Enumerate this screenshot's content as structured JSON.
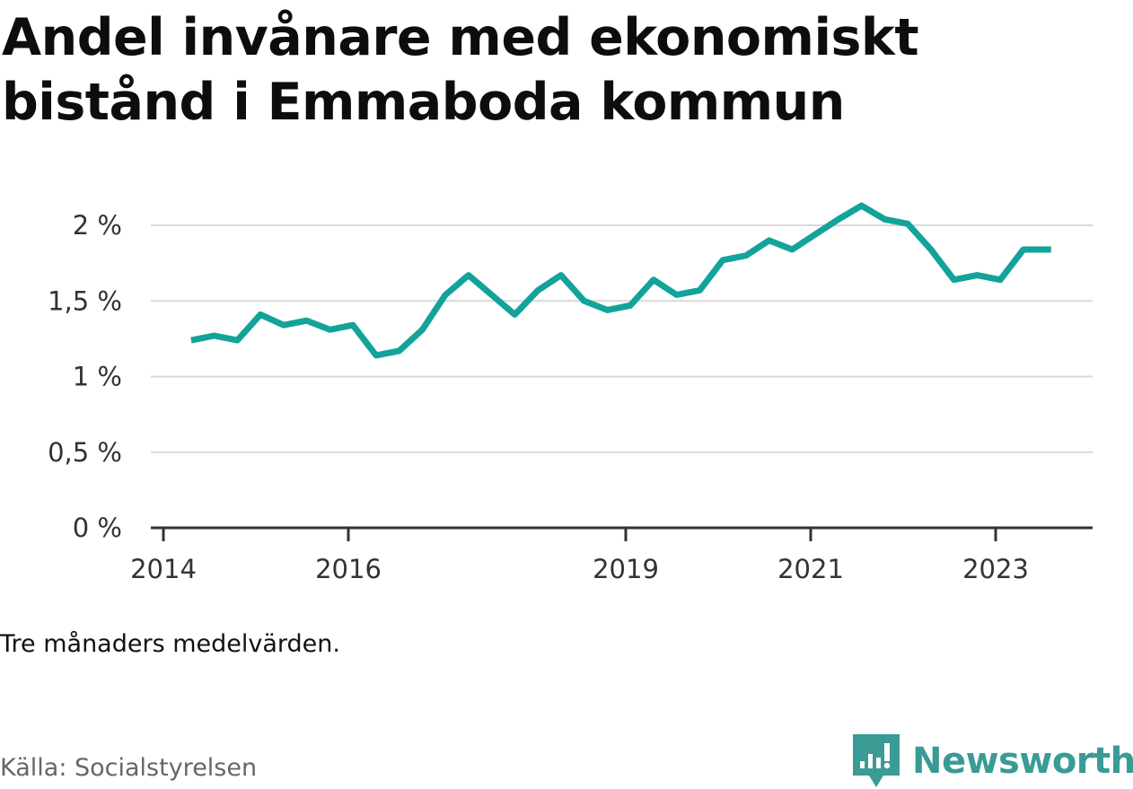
{
  "title": "Andel invånare med ekonomiskt bistånd i Emmaboda kommun",
  "note": "Tre månaders medelvärden.",
  "source": "Källa: Socialstyrelsen",
  "brand": {
    "name": "Newsworthy",
    "color": "#3a9b95",
    "icon": "bar-chart-speech-bubble-icon"
  },
  "colors": {
    "line": "#12a39a",
    "grid": "#d9d9d9",
    "axis": "#333333"
  },
  "chart_data": {
    "type": "line",
    "title": "Andel invånare med ekonomiskt bistånd i Emmaboda kommun",
    "xlabel": "",
    "ylabel": "",
    "ylim": [
      0,
      2.2
    ],
    "y_ticks": [
      0,
      0.5,
      1,
      1.5,
      2
    ],
    "y_tick_labels": [
      "0 %",
      "0,5 %",
      "1 %",
      "1,5 %",
      "2 %"
    ],
    "x_ticks": [
      2014,
      2016,
      2019,
      2021,
      2023
    ],
    "x_tick_labels": [
      "2014",
      "2016",
      "2019",
      "2021",
      "2023"
    ],
    "xlim": [
      2013.75,
      2024.1
    ],
    "grid": true,
    "legend": "none",
    "series": [
      {
        "x": [
          2014.3,
          2014.55,
          2014.8,
          2015.05,
          2015.3,
          2015.55,
          2015.8,
          2016.05,
          2016.3,
          2016.55,
          2016.8,
          2017.05,
          2017.3,
          2017.55,
          2017.8,
          2018.05,
          2018.3,
          2018.55,
          2018.8,
          2019.05,
          2019.3,
          2019.55,
          2019.8,
          2020.05,
          2020.3,
          2020.55,
          2020.8,
          2021.05,
          2021.3,
          2021.55,
          2021.8,
          2022.05,
          2022.3,
          2022.55,
          2022.8,
          2023.05,
          2023.3,
          2023.6
        ],
        "y": [
          1.24,
          1.27,
          1.24,
          1.41,
          1.34,
          1.37,
          1.31,
          1.34,
          1.14,
          1.17,
          1.31,
          1.54,
          1.67,
          1.54,
          1.41,
          1.57,
          1.67,
          1.5,
          1.44,
          1.47,
          1.64,
          1.54,
          1.57,
          1.77,
          1.8,
          1.9,
          1.84,
          1.94,
          2.04,
          2.13,
          2.04,
          2.01,
          1.84,
          1.64,
          1.67,
          1.64,
          1.84,
          1.84
        ]
      }
    ]
  }
}
